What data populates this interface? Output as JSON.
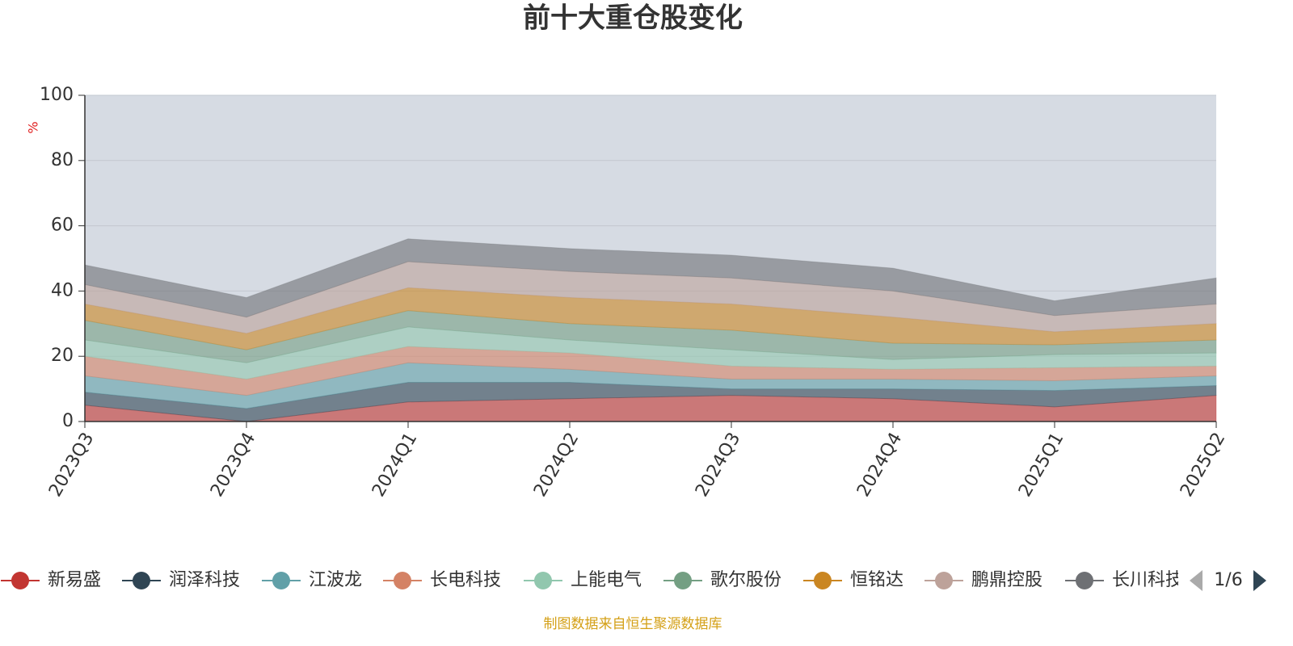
{
  "chart_data": {
    "type": "stacked-area",
    "title": "前十大重仓股变化",
    "y_label": "%",
    "source": "制图数据来自恒生聚源数据库",
    "legend_page": "1/6",
    "categories": [
      "2023Q3",
      "2023Q4",
      "2024Q1",
      "2024Q2",
      "2024Q3",
      "2024Q4",
      "2025Q1",
      "2025Q2"
    ],
    "ylim": [
      0,
      100
    ],
    "yticks": [
      0,
      20,
      40,
      60,
      80,
      100
    ],
    "grid": true,
    "series": [
      {
        "name": "新易盛",
        "color": "#c23531",
        "values": [
          5,
          0,
          6,
          7,
          8,
          7,
          4.5,
          8
        ]
      },
      {
        "name": "润泽科技",
        "color": "#2f4554",
        "values": [
          4,
          4,
          6,
          5,
          2,
          3,
          5,
          3
        ]
      },
      {
        "name": "江波龙",
        "color": "#61a0a8",
        "values": [
          5,
          4,
          6,
          4,
          3,
          3,
          3,
          3
        ]
      },
      {
        "name": "长电科技",
        "color": "#d48265",
        "values": [
          6,
          5,
          5,
          5,
          4,
          3,
          4,
          3
        ]
      },
      {
        "name": "上能电气",
        "color": "#91c7ae",
        "values": [
          5,
          5,
          6,
          4,
          5,
          3,
          4,
          4
        ]
      },
      {
        "name": "歌尔股份",
        "color": "#749f83",
        "values": [
          6,
          4,
          5,
          5,
          6,
          5,
          3,
          4
        ]
      },
      {
        "name": "恒铭达",
        "color": "#ca8622",
        "values": [
          5,
          5,
          7,
          8,
          8,
          8,
          4,
          5
        ]
      },
      {
        "name": "鹏鼎控股",
        "color": "#bda29a",
        "values": [
          6,
          5,
          8,
          8,
          8,
          8,
          5,
          6
        ]
      },
      {
        "name": "长川科技",
        "color": "#6e7074",
        "values": [
          6,
          6,
          7,
          7,
          7,
          7,
          4.5,
          8
        ]
      }
    ]
  }
}
